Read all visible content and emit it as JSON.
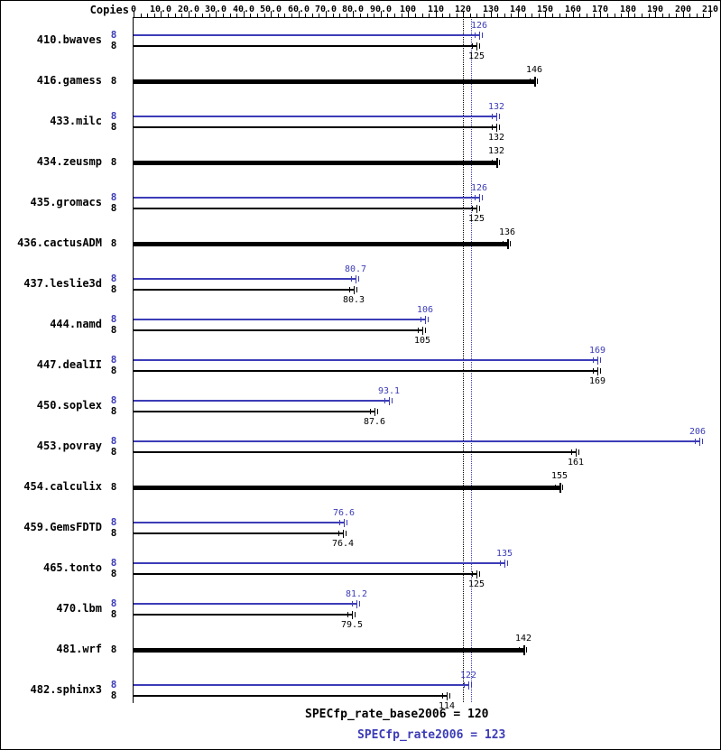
{
  "header": {
    "copies_label": "Copies"
  },
  "colors": {
    "peak": "#3c3cb8",
    "base": "#000000",
    "background": "#ffffff"
  },
  "chart_data": {
    "type": "bar",
    "orientation": "horizontal",
    "axis": {
      "min": 0,
      "max": 210,
      "major_step": 10,
      "minor_step": 2.5,
      "tick_labels": [
        "0",
        "10.0",
        "20.0",
        "30.0",
        "40.0",
        "50.0",
        "60.0",
        "70.0",
        "80.0",
        "90.0",
        "100",
        "110",
        "120",
        "130",
        "140",
        "150",
        "160",
        "170",
        "180",
        "190",
        "200",
        "210"
      ]
    },
    "benchmarks": [
      {
        "name": "410.bwaves",
        "bars": [
          {
            "series": "peak",
            "copies": "8",
            "value": 126,
            "label": "126"
          },
          {
            "series": "base",
            "copies": "8",
            "value": 125,
            "label": "125"
          }
        ]
      },
      {
        "name": "416.gamess",
        "bars": [
          {
            "series": "basepeak",
            "copies": "8",
            "value": 146,
            "label": "146"
          }
        ]
      },
      {
        "name": "433.milc",
        "bars": [
          {
            "series": "peak",
            "copies": "8",
            "value": 132,
            "label": "132"
          },
          {
            "series": "base",
            "copies": "8",
            "value": 132,
            "label": "132"
          }
        ]
      },
      {
        "name": "434.zeusmp",
        "bars": [
          {
            "series": "basepeak",
            "copies": "8",
            "value": 132,
            "label": "132"
          }
        ]
      },
      {
        "name": "435.gromacs",
        "bars": [
          {
            "series": "peak",
            "copies": "8",
            "value": 126,
            "label": "126"
          },
          {
            "series": "base",
            "copies": "8",
            "value": 125,
            "label": "125"
          }
        ]
      },
      {
        "name": "436.cactusADM",
        "bars": [
          {
            "series": "basepeak",
            "copies": "8",
            "value": 136,
            "label": "136"
          }
        ]
      },
      {
        "name": "437.leslie3d",
        "bars": [
          {
            "series": "peak",
            "copies": "8",
            "value": 80.7,
            "label": "80.7"
          },
          {
            "series": "base",
            "copies": "8",
            "value": 80.3,
            "label": "80.3"
          }
        ]
      },
      {
        "name": "444.namd",
        "bars": [
          {
            "series": "peak",
            "copies": "8",
            "value": 106,
            "label": "106"
          },
          {
            "series": "base",
            "copies": "8",
            "value": 105,
            "label": "105"
          }
        ]
      },
      {
        "name": "447.dealII",
        "bars": [
          {
            "series": "peak",
            "copies": "8",
            "value": 169,
            "label": "169"
          },
          {
            "series": "base",
            "copies": "8",
            "value": 169,
            "label": "169"
          }
        ]
      },
      {
        "name": "450.soplex",
        "bars": [
          {
            "series": "peak",
            "copies": "8",
            "value": 93.1,
            "label": "93.1"
          },
          {
            "series": "base",
            "copies": "8",
            "value": 87.6,
            "label": "87.6"
          }
        ]
      },
      {
        "name": "453.povray",
        "bars": [
          {
            "series": "peak",
            "copies": "8",
            "value": 206,
            "label": "206"
          },
          {
            "series": "base",
            "copies": "8",
            "value": 161,
            "label": "161"
          }
        ]
      },
      {
        "name": "454.calculix",
        "bars": [
          {
            "series": "basepeak",
            "copies": "8",
            "value": 155,
            "label": "155"
          }
        ]
      },
      {
        "name": "459.GemsFDTD",
        "bars": [
          {
            "series": "peak",
            "copies": "8",
            "value": 76.6,
            "label": "76.6"
          },
          {
            "series": "base",
            "copies": "8",
            "value": 76.4,
            "label": "76.4"
          }
        ]
      },
      {
        "name": "465.tonto",
        "bars": [
          {
            "series": "peak",
            "copies": "8",
            "value": 135,
            "label": "135"
          },
          {
            "series": "base",
            "copies": "8",
            "value": 125,
            "label": "125"
          }
        ]
      },
      {
        "name": "470.lbm",
        "bars": [
          {
            "series": "peak",
            "copies": "8",
            "value": 81.2,
            "label": "81.2"
          },
          {
            "series": "base",
            "copies": "8",
            "value": 79.5,
            "label": "79.5"
          }
        ]
      },
      {
        "name": "481.wrf",
        "bars": [
          {
            "series": "basepeak",
            "copies": "8",
            "value": 142,
            "label": "142"
          }
        ]
      },
      {
        "name": "482.sphinx3",
        "bars": [
          {
            "series": "peak",
            "copies": "8",
            "value": 122,
            "label": "122"
          },
          {
            "series": "base",
            "copies": "8",
            "value": 114,
            "label": "114"
          }
        ]
      }
    ],
    "reference_lines": [
      {
        "series": "base",
        "value": 120
      },
      {
        "series": "peak",
        "value": 123
      }
    ],
    "footer": {
      "base_summary": "SPECfp_rate_base2006 = 120",
      "peak_summary": "SPECfp_rate2006 = 123"
    }
  }
}
